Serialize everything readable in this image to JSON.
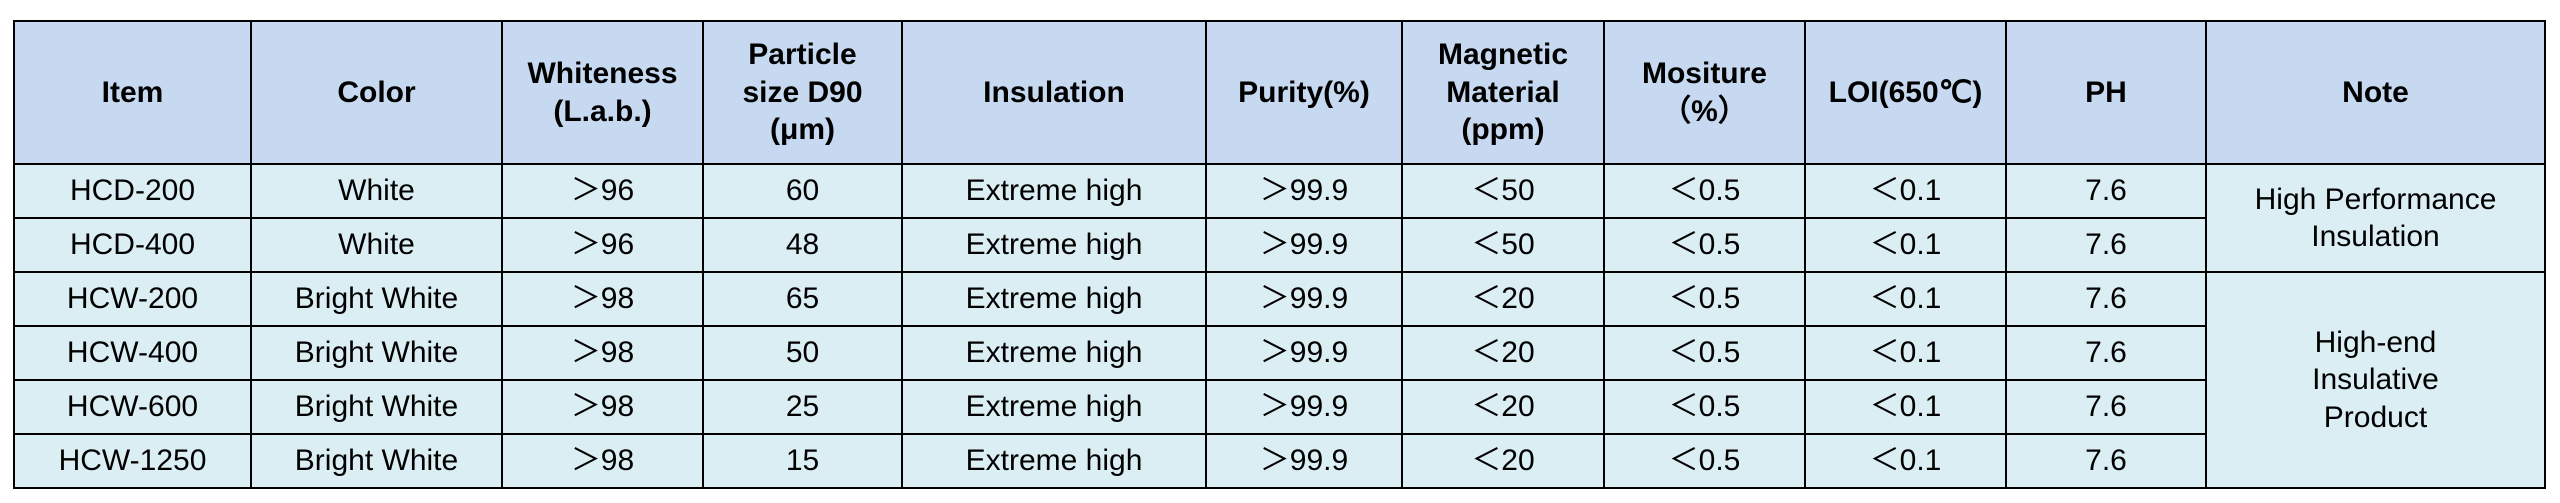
{
  "table": {
    "header": [
      [
        "Item"
      ],
      [
        "Color"
      ],
      [
        "Whiteness",
        "(L.a.b.)"
      ],
      [
        "Particle",
        "size D90",
        "(μm)"
      ],
      [
        "Insulation"
      ],
      [
        "Purity(%)"
      ],
      [
        "Magnetic",
        "Material",
        "(ppm)"
      ],
      [
        "Mositure",
        "（%）"
      ],
      [
        "LOI(650℃)"
      ],
      [
        "PH"
      ],
      [
        "Note"
      ]
    ],
    "groups": [
      {
        "rows": [
          [
            "HCD-200",
            "White",
            "＞96",
            "60",
            "Extreme high",
            "＞99.9",
            "＜50",
            "＜0.5",
            "＜0.1",
            "7.6"
          ],
          [
            "HCD-400",
            "White",
            "＞96",
            "48",
            "Extreme high",
            "＞99.9",
            "＜50",
            "＜0.5",
            "＜0.1",
            "7.6"
          ]
        ],
        "note": [
          "High Performance",
          "Insulation"
        ]
      },
      {
        "rows": [
          [
            "HCW-200",
            "Bright White",
            "＞98",
            "65",
            "Extreme high",
            "＞99.9",
            "＜20",
            "＜0.5",
            "＜0.1",
            "7.6"
          ],
          [
            "HCW-400",
            "Bright White",
            "＞98",
            "50",
            "Extreme high",
            "＞99.9",
            "＜20",
            "＜0.5",
            "＜0.1",
            "7.6"
          ],
          [
            "HCW-600",
            "Bright White",
            "＞98",
            "25",
            "Extreme high",
            "＞99.9",
            "＜20",
            "＜0.5",
            "＜0.1",
            "7.6"
          ],
          [
            "HCW-1250",
            "Bright White",
            "＞98",
            "15",
            "Extreme high",
            "＞99.9",
            "＜20",
            "＜0.5",
            "＜0.1",
            "7.6"
          ]
        ],
        "note": [
          "High-end",
          "Insulative",
          "Product"
        ]
      }
    ]
  }
}
